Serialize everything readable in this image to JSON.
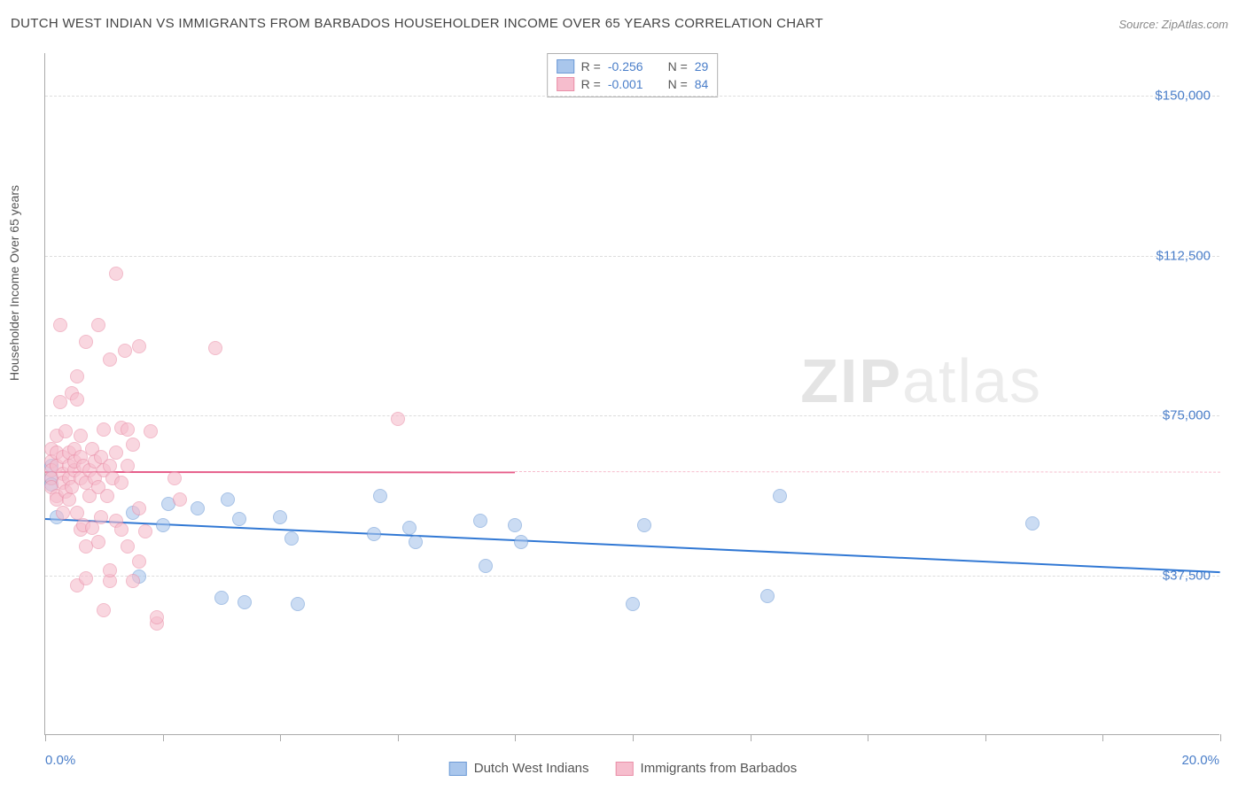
{
  "title": "DUTCH WEST INDIAN VS IMMIGRANTS FROM BARBADOS HOUSEHOLDER INCOME OVER 65 YEARS CORRELATION CHART",
  "source": "Source: ZipAtlas.com",
  "y_axis_label": "Householder Income Over 65 years",
  "watermark_bold": "ZIP",
  "watermark_rest": "atlas",
  "chart": {
    "type": "scatter",
    "xlim": [
      0,
      20
    ],
    "ylim": [
      0,
      160000
    ],
    "x_ticks": [
      0,
      2,
      4,
      6,
      8,
      10,
      12,
      14,
      16,
      18,
      20
    ],
    "x_tick_labels": {
      "0": "0.0%",
      "20": "20.0%"
    },
    "y_gridlines": [
      37500,
      75000,
      112500,
      150000
    ],
    "y_tick_labels": {
      "37500": "$37,500",
      "75000": "$75,000",
      "112500": "$112,500",
      "150000": "$150,000"
    },
    "background_color": "#ffffff",
    "grid_color": "#dddddd",
    "axis_color": "#aaaaaa",
    "label_color": "#555555",
    "tick_label_color": "#4a7ec9",
    "title_fontsize": 15,
    "label_fontsize": 14,
    "tick_fontsize": 15,
    "marker_size": 16,
    "marker_opacity": 0.6,
    "series": [
      {
        "name": "Dutch West Indians",
        "fill_color": "#a9c6ec",
        "stroke_color": "#6d9ad6",
        "trend_color": "#3178d4",
        "r": "-0.256",
        "n": "29",
        "trend": {
          "x1": 0,
          "y1": 51000,
          "x2": 20,
          "y2": 38500,
          "solid_until": 20
        },
        "points": [
          [
            0.1,
            60000
          ],
          [
            0.1,
            58500
          ],
          [
            0.1,
            63000
          ],
          [
            0.2,
            51000
          ],
          [
            1.5,
            52000
          ],
          [
            1.6,
            37000
          ],
          [
            2.0,
            49000
          ],
          [
            2.1,
            54000
          ],
          [
            2.6,
            53000
          ],
          [
            3.0,
            32000
          ],
          [
            3.1,
            55000
          ],
          [
            3.3,
            50500
          ],
          [
            3.4,
            31000
          ],
          [
            4.0,
            51000
          ],
          [
            4.2,
            46000
          ],
          [
            4.3,
            30500
          ],
          [
            5.6,
            47000
          ],
          [
            5.7,
            56000
          ],
          [
            6.2,
            48500
          ],
          [
            6.3,
            45000
          ],
          [
            7.4,
            50000
          ],
          [
            7.5,
            39500
          ],
          [
            8.0,
            49000
          ],
          [
            8.1,
            45000
          ],
          [
            10.0,
            30500
          ],
          [
            12.3,
            32500
          ],
          [
            12.5,
            56000
          ],
          [
            16.8,
            49500
          ],
          [
            10.2,
            49000
          ]
        ]
      },
      {
        "name": "Immigrants from Barbados",
        "fill_color": "#f6bdcd",
        "stroke_color": "#ea8fa8",
        "trend_color": "#e65d8a",
        "r": "-0.001",
        "n": "84",
        "trend": {
          "x1": 0,
          "y1": 62000,
          "x2": 20,
          "y2": 61800,
          "solid_until": 8
        },
        "points": [
          [
            0.1,
            67000
          ],
          [
            0.1,
            64000
          ],
          [
            0.1,
            62000
          ],
          [
            0.1,
            60000
          ],
          [
            0.1,
            58000
          ],
          [
            0.2,
            56000
          ],
          [
            0.2,
            70000
          ],
          [
            0.2,
            66000
          ],
          [
            0.2,
            63000
          ],
          [
            0.2,
            55000
          ],
          [
            0.25,
            96000
          ],
          [
            0.25,
            78000
          ],
          [
            0.3,
            52000
          ],
          [
            0.3,
            65000
          ],
          [
            0.3,
            61000
          ],
          [
            0.3,
            59000
          ],
          [
            0.35,
            57000
          ],
          [
            0.35,
            71000
          ],
          [
            0.4,
            66000
          ],
          [
            0.4,
            63000
          ],
          [
            0.4,
            60000
          ],
          [
            0.4,
            55000
          ],
          [
            0.45,
            80000
          ],
          [
            0.45,
            58000
          ],
          [
            0.5,
            62000
          ],
          [
            0.5,
            67000
          ],
          [
            0.5,
            64000
          ],
          [
            0.55,
            78500
          ],
          [
            0.55,
            52000
          ],
          [
            0.55,
            35000
          ],
          [
            0.6,
            48000
          ],
          [
            0.6,
            60000
          ],
          [
            0.6,
            65000
          ],
          [
            0.6,
            70000
          ],
          [
            0.65,
            63000
          ],
          [
            0.65,
            49000
          ],
          [
            0.7,
            92000
          ],
          [
            0.7,
            36500
          ],
          [
            0.7,
            44000
          ],
          [
            0.7,
            59000
          ],
          [
            0.75,
            56000
          ],
          [
            0.75,
            62000
          ],
          [
            0.8,
            67000
          ],
          [
            0.8,
            48500
          ],
          [
            0.85,
            64000
          ],
          [
            0.85,
            60000
          ],
          [
            0.9,
            96000
          ],
          [
            0.9,
            45000
          ],
          [
            0.9,
            58000
          ],
          [
            0.95,
            51000
          ],
          [
            0.95,
            65000
          ],
          [
            1.0,
            62000
          ],
          [
            1.0,
            29000
          ],
          [
            1.0,
            71500
          ],
          [
            1.05,
            56000
          ],
          [
            1.1,
            88000
          ],
          [
            1.1,
            36000
          ],
          [
            1.1,
            63000
          ],
          [
            1.1,
            38500
          ],
          [
            1.15,
            60000
          ],
          [
            1.2,
            108000
          ],
          [
            1.2,
            50000
          ],
          [
            1.2,
            66000
          ],
          [
            1.3,
            48000
          ],
          [
            1.3,
            72000
          ],
          [
            1.3,
            59000
          ],
          [
            1.35,
            90000
          ],
          [
            1.4,
            44000
          ],
          [
            1.4,
            63000
          ],
          [
            1.4,
            71500
          ],
          [
            1.5,
            36000
          ],
          [
            1.5,
            68000
          ],
          [
            1.6,
            91000
          ],
          [
            1.6,
            53000
          ],
          [
            1.6,
            40500
          ],
          [
            1.7,
            47500
          ],
          [
            1.8,
            71000
          ],
          [
            1.9,
            26000
          ],
          [
            1.9,
            27500
          ],
          [
            2.2,
            60000
          ],
          [
            2.3,
            55000
          ],
          [
            2.9,
            90500
          ],
          [
            6.0,
            74000
          ],
          [
            0.55,
            84000
          ]
        ]
      }
    ]
  },
  "stats_legend": {
    "r_label": "R =",
    "n_label": "N ="
  },
  "bottom_legend": {
    "items": [
      "Dutch West Indians",
      "Immigrants from Barbados"
    ]
  }
}
